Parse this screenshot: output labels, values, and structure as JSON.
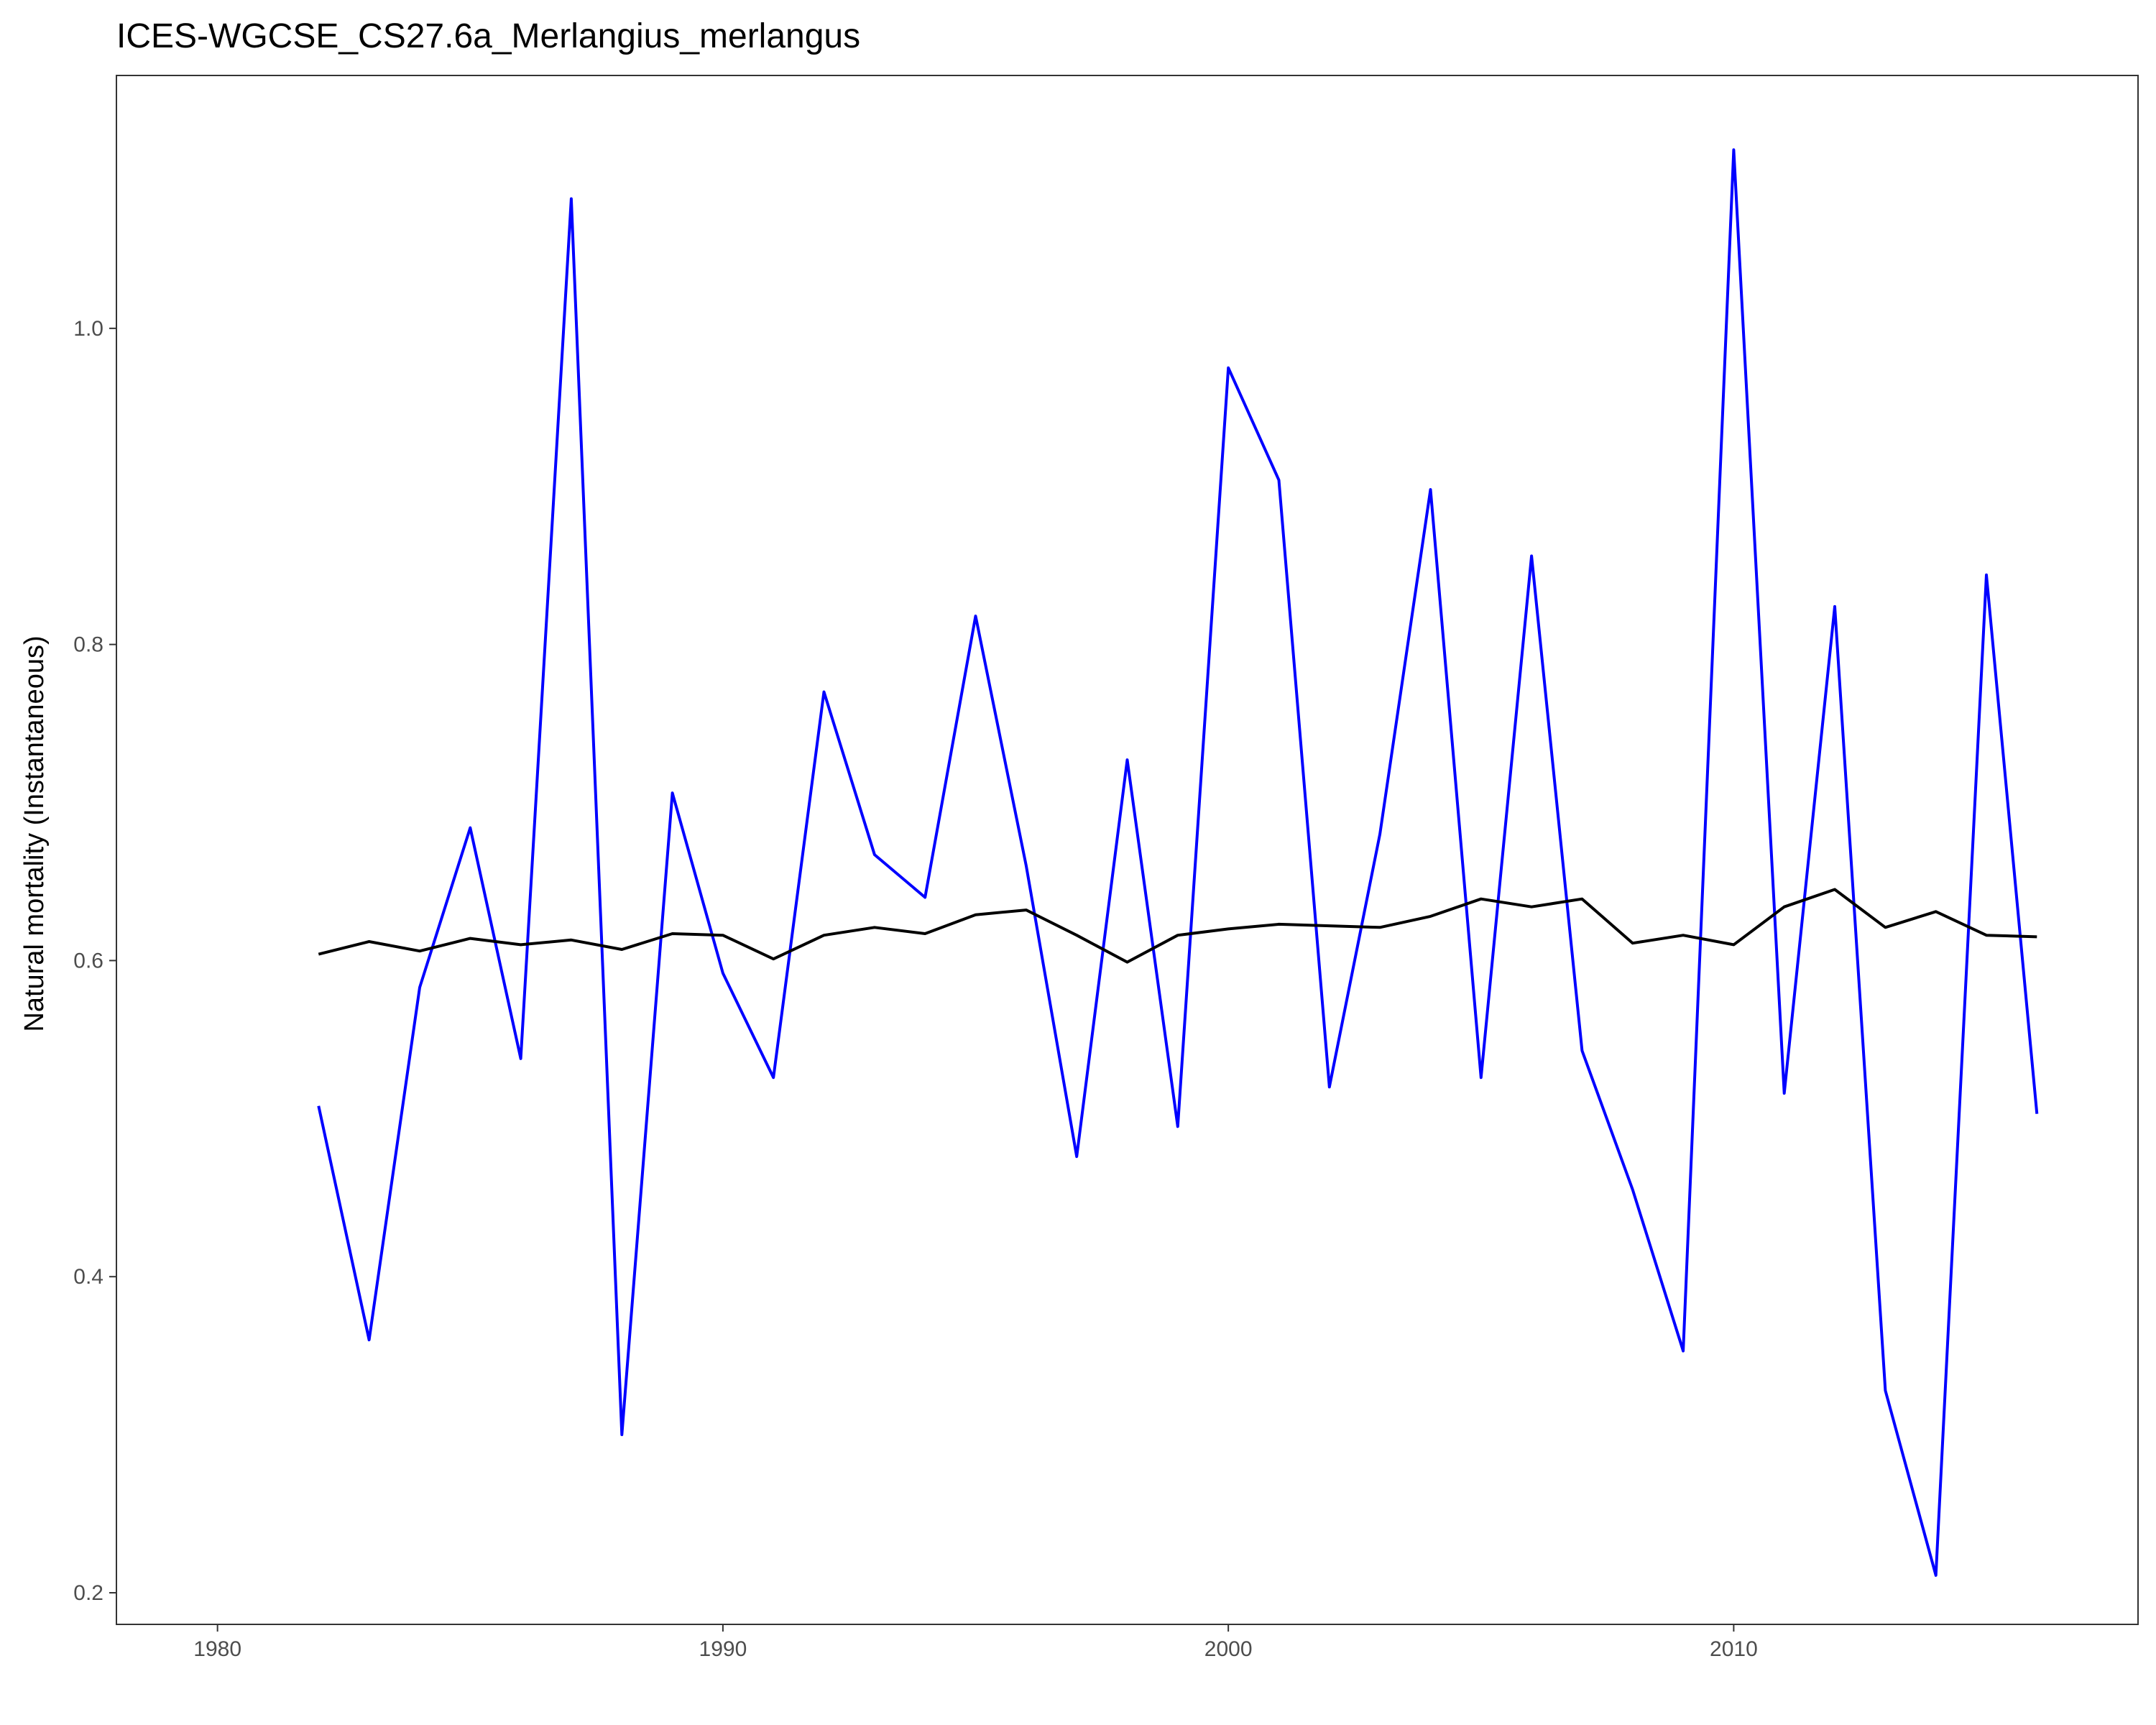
{
  "chart_data": {
    "type": "line",
    "title": "ICES-WGCSE_CS27.6a_Merlangius_merlangus",
    "xlabel": "",
    "ylabel": "Natural mortality (Instantaneous)",
    "xlim": [
      1978,
      2018
    ],
    "ylim": [
      0.18,
      1.16
    ],
    "xticks": [
      1980,
      1990,
      2000,
      2010
    ],
    "yticks": [
      0.2,
      0.4,
      0.6,
      0.8,
      1.0
    ],
    "xtick_labels": [
      "1980",
      "1990",
      "2000",
      "2010"
    ],
    "ytick_labels": [
      "0.2",
      "0.4",
      "0.6",
      "0.8",
      "1.0"
    ],
    "grid": false,
    "legend": "none",
    "x": [
      1982,
      1983,
      1984,
      1985,
      1986,
      1987,
      1988,
      1989,
      1990,
      1991,
      1992,
      1993,
      1994,
      1995,
      1996,
      1997,
      1998,
      1999,
      2000,
      2001,
      2002,
      2003,
      2004,
      2005,
      2006,
      2007,
      2008,
      2009,
      2010,
      2011,
      2012,
      2013,
      2014,
      2015,
      2016
    ],
    "series": [
      {
        "color": "#0000ff",
        "values": [
          0.508,
          0.36,
          0.583,
          0.684,
          0.538,
          1.082,
          0.3,
          0.706,
          0.592,
          0.526,
          0.77,
          0.667,
          0.64,
          0.818,
          0.66,
          0.476,
          0.727,
          0.495,
          0.975,
          0.904,
          0.52,
          0.68,
          0.898,
          0.526,
          0.856,
          0.543,
          0.455,
          0.353,
          1.113,
          0.516,
          0.824,
          0.328,
          0.211,
          0.844,
          0.503
        ]
      },
      {
        "color": "#000000",
        "values": [
          0.604,
          0.612,
          0.606,
          0.614,
          0.61,
          0.613,
          0.607,
          0.617,
          0.616,
          0.601,
          0.616,
          0.621,
          0.617,
          0.629,
          0.632,
          0.616,
          0.599,
          0.616,
          0.62,
          0.623,
          0.622,
          0.621,
          0.628,
          0.639,
          0.634,
          0.639,
          0.611,
          0.616,
          0.61,
          0.634,
          0.645,
          0.621,
          0.631,
          0.616,
          0.615
        ]
      }
    ]
  }
}
